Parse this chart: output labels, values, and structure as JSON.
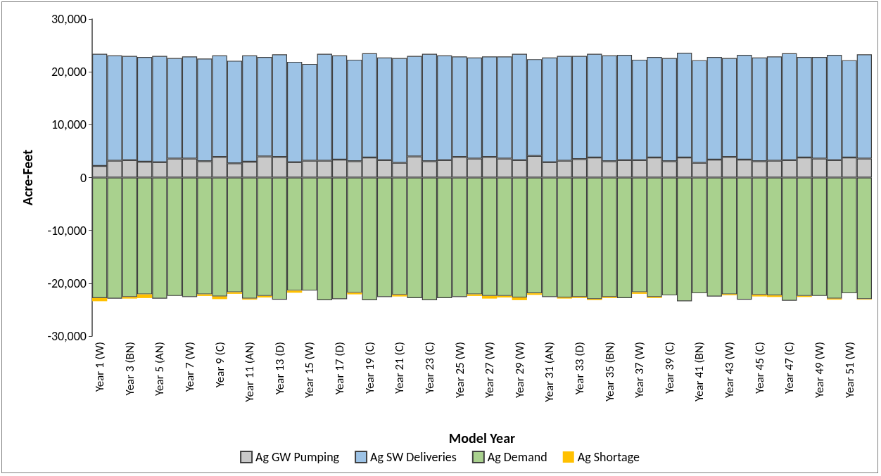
{
  "chart_data": {
    "type": "bar",
    "stacked": true,
    "xlabel": "Model Year",
    "ylabel": "Acre-Feet",
    "categories": [
      "Year 1 (W)",
      null,
      "Year 3 (BN)",
      null,
      "Year 5 (AN)",
      null,
      "Year 7 (W)",
      null,
      "Year 9 (C)",
      null,
      "Year 11 (AN)",
      null,
      "Year 13 (D)",
      null,
      "Year 15 (W)",
      null,
      "Year 17 (D)",
      null,
      "Year 19 (C)",
      null,
      "Year 21 (C)",
      null,
      "Year 23 (C)",
      null,
      "Year 25 (W)",
      null,
      "Year 27 (W)",
      null,
      "Year 29 (W)",
      null,
      "Year 31 (AN)",
      null,
      "Year 33 (D)",
      null,
      "Year 35 (BN)",
      null,
      "Year 37 (W)",
      null,
      "Year 39 (C)",
      null,
      "Year 41 (BN)",
      null,
      "Year 43 (W)",
      null,
      "Year 45 (C)",
      null,
      "Year 47 (C)",
      null,
      "Year 49 (W)",
      null,
      "Year 51 (W)",
      null
    ],
    "series": [
      {
        "name": "Ag GW Pumping",
        "color": "#c9c9c9",
        "values": [
          2200,
          3200,
          3300,
          3000,
          2900,
          3600,
          3600,
          3100,
          3900,
          2700,
          3000,
          4000,
          3900,
          2900,
          3200,
          3200,
          3400,
          3100,
          3800,
          3300,
          2800,
          4000,
          3100,
          3300,
          3900,
          3600,
          3900,
          3600,
          3300,
          4100,
          2900,
          3200,
          3500,
          3800,
          3100,
          3300,
          3300,
          3800,
          3100,
          3800,
          2800,
          3400,
          3900,
          3400,
          3100,
          3200,
          3300,
          3800,
          3600,
          3300,
          3800,
          3600
        ]
      },
      {
        "name": "Ag SW Deliveries",
        "color": "#9dc3e6",
        "values": [
          21200,
          19900,
          19700,
          19800,
          20100,
          19000,
          19300,
          19400,
          19200,
          19400,
          20100,
          18800,
          19400,
          19000,
          18300,
          20200,
          19700,
          19200,
          19700,
          19400,
          19800,
          19000,
          20300,
          19800,
          19000,
          19100,
          19000,
          19300,
          20100,
          18300,
          19800,
          19800,
          19500,
          19600,
          20000,
          19900,
          19000,
          19000,
          19500,
          19800,
          19400,
          19400,
          18700,
          19800,
          19600,
          19700,
          20200,
          19000,
          19200,
          19900,
          18400,
          19700
        ]
      },
      {
        "name": "Ag Demand",
        "color": "#a9d18e",
        "values": [
          -22800,
          -22900,
          -22600,
          -22100,
          -22900,
          -22400,
          -22600,
          -22100,
          -22500,
          -21700,
          -22900,
          -22400,
          -23100,
          -21400,
          -21400,
          -23200,
          -23000,
          -21800,
          -23200,
          -22600,
          -22200,
          -22800,
          -23200,
          -22800,
          -22600,
          -22100,
          -22400,
          -22400,
          -22700,
          -21900,
          -22600,
          -22700,
          -22600,
          -23000,
          -22600,
          -22800,
          -21700,
          -22600,
          -22300,
          -23400,
          -21900,
          -22500,
          -22100,
          -23100,
          -22200,
          -22300,
          -23300,
          -22400,
          -22400,
          -22900,
          -21900,
          -23000
        ]
      },
      {
        "name": "Ag Shortage",
        "color": "#ffc000",
        "values": [
          -600,
          0,
          -300,
          -700,
          0,
          0,
          0,
          -300,
          -500,
          -300,
          -200,
          -300,
          0,
          -400,
          0,
          0,
          0,
          -300,
          0,
          0,
          -300,
          0,
          0,
          0,
          0,
          -300,
          -500,
          -300,
          -500,
          -300,
          0,
          -200,
          -200,
          -200,
          -200,
          0,
          -300,
          -200,
          0,
          0,
          0,
          0,
          -200,
          0,
          -300,
          -300,
          0,
          -200,
          0,
          -200,
          0,
          -100
        ]
      }
    ],
    "ylim": [
      -30000,
      30000
    ],
    "yticks": [
      {
        "value": -30000,
        "label": "-30,000"
      },
      {
        "value": -20000,
        "label": "-20,000"
      },
      {
        "value": -10000,
        "label": "-10,000"
      },
      0,
      {
        "value": 10000,
        "label": "10,000"
      },
      {
        "value": 20000,
        "label": "20,000"
      },
      {
        "value": 30000,
        "label": "30,000"
      }
    ],
    "grid": false,
    "legend": "bottom"
  }
}
